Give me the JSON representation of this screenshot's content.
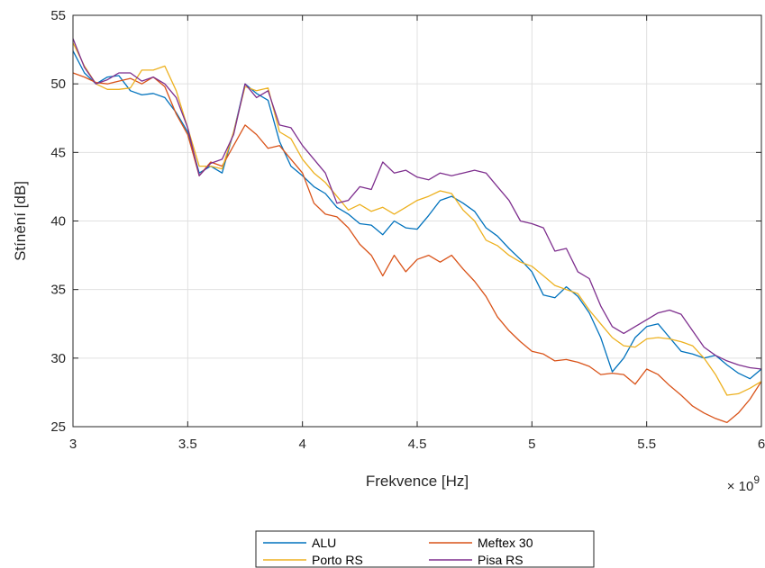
{
  "chart_data": {
    "type": "line",
    "xlabel": "Frekvence [Hz]",
    "ylabel": "Stínění [dB]",
    "x_exponent_label": "× 10",
    "x_exponent_power": "9",
    "x_multiplier": 1000000000.0,
    "xlim": [
      3,
      6
    ],
    "ylim": [
      25,
      55
    ],
    "xticks": [
      3,
      3.5,
      4,
      4.5,
      5,
      5.5,
      6
    ],
    "xtick_labels": [
      "3",
      "3.5",
      "4",
      "4.5",
      "5",
      "5.5",
      "6"
    ],
    "yticks": [
      25,
      30,
      35,
      40,
      45,
      50,
      55
    ],
    "ytick_labels": [
      "25",
      "30",
      "35",
      "40",
      "45",
      "50",
      "55"
    ],
    "grid": true,
    "legend_placement": "bottom-outside",
    "x": [
      3.0,
      3.05,
      3.1,
      3.15,
      3.2,
      3.25,
      3.3,
      3.35,
      3.4,
      3.45,
      3.5,
      3.55,
      3.6,
      3.65,
      3.7,
      3.75,
      3.8,
      3.85,
      3.9,
      3.95,
      4.0,
      4.05,
      4.1,
      4.15,
      4.2,
      4.25,
      4.3,
      4.35,
      4.4,
      4.45,
      4.5,
      4.55,
      4.6,
      4.65,
      4.7,
      4.75,
      4.8,
      4.85,
      4.9,
      4.95,
      5.0,
      5.05,
      5.1,
      5.15,
      5.2,
      5.25,
      5.3,
      5.35,
      5.4,
      5.45,
      5.5,
      5.55,
      5.6,
      5.65,
      5.7,
      5.75,
      5.8,
      5.85,
      5.9,
      5.95,
      6.0
    ],
    "series": [
      {
        "name": "ALU",
        "color": "#0072BD",
        "values": [
          52.4,
          50.8,
          50.0,
          50.5,
          50.6,
          49.5,
          49.2,
          49.3,
          49.0,
          47.9,
          46.5,
          43.5,
          44.0,
          43.5,
          46.5,
          50.0,
          49.3,
          48.8,
          45.8,
          44.0,
          43.3,
          42.5,
          42.0,
          41.0,
          40.5,
          39.8,
          39.7,
          39.0,
          40.0,
          39.5,
          39.4,
          40.4,
          41.5,
          41.8,
          41.3,
          40.7,
          39.5,
          38.9,
          38.0,
          37.2,
          36.3,
          34.6,
          34.4,
          35.2,
          34.5,
          33.3,
          31.5,
          29.0,
          30.0,
          31.5,
          32.3,
          32.5,
          31.5,
          30.5,
          30.3,
          30.0,
          30.2,
          29.5,
          28.9,
          28.5,
          29.2
        ]
      },
      {
        "name": "Meftex 30",
        "color": "#D95319",
        "values": [
          50.8,
          50.5,
          50.1,
          50.0,
          50.2,
          50.4,
          50.0,
          50.5,
          49.8,
          47.8,
          46.3,
          43.3,
          44.3,
          44.0,
          45.5,
          47.0,
          46.3,
          45.3,
          45.5,
          44.5,
          43.5,
          41.3,
          40.5,
          40.3,
          39.5,
          38.3,
          37.5,
          36.0,
          37.5,
          36.3,
          37.2,
          37.5,
          37.0,
          37.5,
          36.5,
          35.6,
          34.5,
          33.0,
          32.0,
          31.2,
          30.5,
          30.3,
          29.8,
          29.9,
          29.7,
          29.4,
          28.8,
          28.9,
          28.8,
          28.1,
          29.2,
          28.8,
          28.0,
          27.3,
          26.5,
          26.0,
          25.6,
          25.3,
          26.0,
          27.0,
          28.3
        ]
      },
      {
        "name": "Porto RS",
        "color": "#EDB120",
        "values": [
          53.0,
          51.3,
          50.0,
          49.6,
          49.6,
          49.7,
          51.0,
          51.0,
          51.3,
          49.5,
          46.8,
          44.0,
          44.0,
          43.8,
          46.5,
          49.8,
          49.5,
          49.7,
          46.5,
          46.0,
          44.5,
          43.5,
          42.8,
          41.8,
          40.8,
          41.2,
          40.7,
          41.0,
          40.5,
          41.0,
          41.5,
          41.8,
          42.2,
          42.0,
          40.8,
          40.0,
          38.6,
          38.2,
          37.5,
          37.0,
          36.7,
          36.0,
          35.3,
          35.0,
          34.7,
          33.5,
          32.5,
          31.5,
          30.9,
          30.8,
          31.4,
          31.5,
          31.4,
          31.2,
          30.9,
          30.0,
          28.8,
          27.3,
          27.4,
          27.8,
          28.3
        ]
      },
      {
        "name": "Pisa RS",
        "color": "#7E2F8E",
        "values": [
          53.3,
          51.2,
          50.0,
          50.3,
          50.8,
          50.8,
          50.2,
          50.5,
          50.0,
          49.0,
          46.8,
          43.3,
          44.2,
          44.5,
          46.3,
          50.0,
          49.0,
          49.5,
          47.0,
          46.8,
          45.5,
          44.5,
          43.5,
          41.3,
          41.5,
          42.5,
          42.3,
          44.3,
          43.5,
          43.7,
          43.2,
          43.0,
          43.5,
          43.3,
          43.5,
          43.7,
          43.5,
          42.5,
          41.5,
          40.0,
          39.8,
          39.5,
          37.8,
          38.0,
          36.3,
          35.8,
          33.8,
          32.3,
          31.8,
          32.3,
          32.8,
          33.3,
          33.5,
          33.2,
          32.0,
          30.8,
          30.2,
          29.8,
          29.5,
          29.3,
          29.2
        ]
      }
    ]
  }
}
